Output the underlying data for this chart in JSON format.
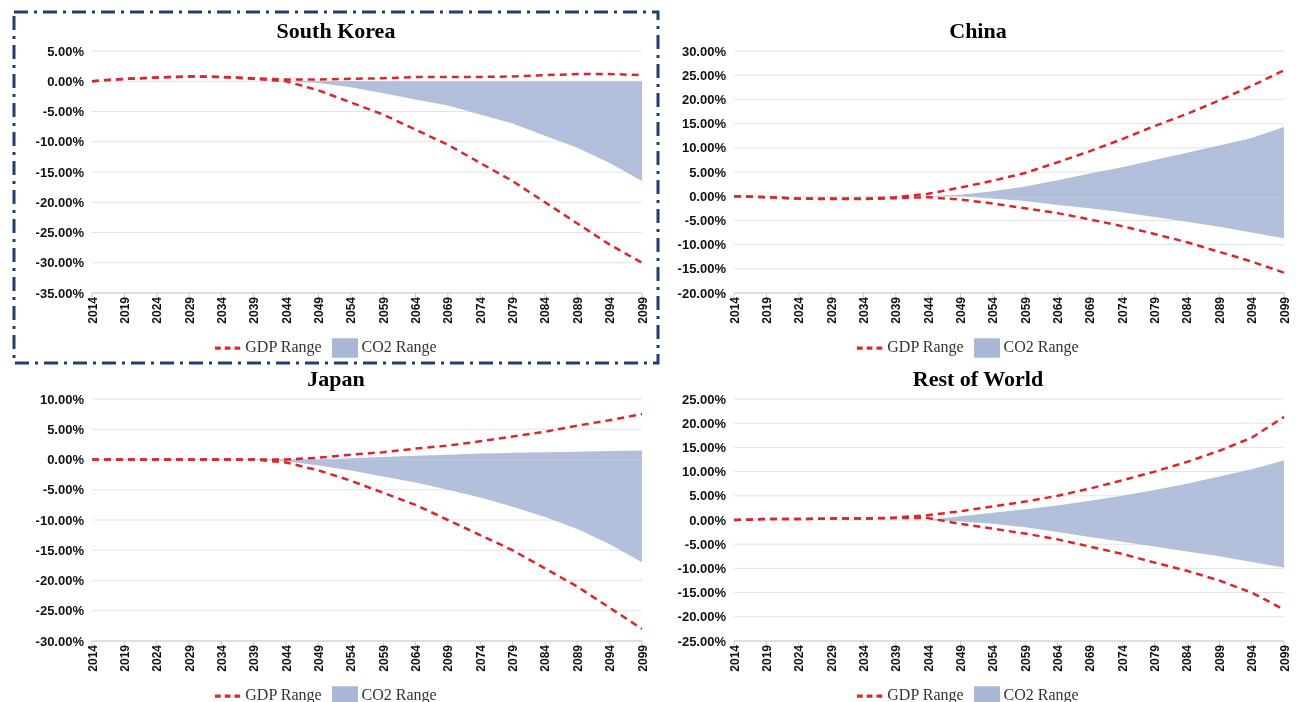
{
  "chart_data": [
    {
      "type": "area",
      "title": "South Korea",
      "categories": [
        "2014",
        "2019",
        "2024",
        "2029",
        "2034",
        "2039",
        "2044",
        "2049",
        "2054",
        "2059",
        "2064",
        "2069",
        "2074",
        "2079",
        "2084",
        "2089",
        "2094",
        "2099"
      ],
      "ylim": [
        -35,
        5
      ],
      "yticks": [
        {
          "value": 5,
          "label": "5.00%"
        },
        {
          "value": 0,
          "label": "0.00%"
        },
        {
          "value": -5,
          "label": "-5.00%"
        },
        {
          "value": -10,
          "label": "-10.00%"
        },
        {
          "value": -15,
          "label": "-15.00%"
        },
        {
          "value": -20,
          "label": "-20.00%"
        },
        {
          "value": -25,
          "label": "-25.00%"
        },
        {
          "value": -30,
          "label": "-30.00%"
        },
        {
          "value": -35,
          "label": "-35.00%"
        }
      ],
      "grid": "y",
      "legend": "bottom",
      "series": [
        {
          "name": "GDP Range",
          "type": "line",
          "line_style": "dashed",
          "color": "#e0242b",
          "values": [
            0,
            0.4,
            0.6,
            0.8,
            0.7,
            0.5,
            0.3,
            0.3,
            0.4,
            0.5,
            0.7,
            0.7,
            0.7,
            0.8,
            1,
            1.2,
            1.2,
            1
          ]
        },
        {
          "type": "line",
          "line_style": "dashed",
          "color": "#e0242b",
          "values": [
            0,
            0.4,
            0.6,
            0.8,
            0.7,
            0.4,
            0,
            -1.5,
            -3.5,
            -5.5,
            -8,
            -10.5,
            -13.5,
            -16.5,
            -20,
            -23.5,
            -27,
            -30
          ]
        },
        {
          "name": "CO2 Range",
          "color": "#a9b8d6",
          "values": [
            0,
            0,
            0,
            0,
            0,
            0,
            0,
            -0.3,
            -1,
            -2,
            -3,
            -4,
            -5.5,
            -7,
            -9,
            -11,
            -13.5,
            -16.5
          ]
        }
      ]
    },
    {
      "type": "area",
      "title": "China",
      "categories": [
        "2014",
        "2019",
        "2024",
        "2029",
        "2034",
        "2039",
        "2044",
        "2049",
        "2054",
        "2059",
        "2064",
        "2069",
        "2074",
        "2079",
        "2084",
        "2089",
        "2094",
        "2099"
      ],
      "ylim": [
        -20,
        30
      ],
      "yticks": [
        {
          "value": 30,
          "label": "30.00%"
        },
        {
          "value": 25,
          "label": "25.00%"
        },
        {
          "value": 20,
          "label": "20.00%"
        },
        {
          "value": 15,
          "label": "15.00%"
        },
        {
          "value": 10,
          "label": "10.00%"
        },
        {
          "value": 5,
          "label": "5.00%"
        },
        {
          "value": 0,
          "label": "0.00%"
        },
        {
          "value": -5,
          "label": "-5.00%"
        },
        {
          "value": -10,
          "label": "-10.00%"
        },
        {
          "value": -15,
          "label": "-15.00%"
        },
        {
          "value": -20,
          "label": "-20.00%"
        }
      ],
      "grid": "y",
      "legend": "bottom",
      "series": [
        {
          "name": "GDP Range",
          "type": "line",
          "line_style": "dashed",
          "color": "#e0242b",
          "values": [
            0,
            -0.2,
            -0.5,
            -0.5,
            -0.5,
            -0.2,
            0.5,
            1.8,
            3.2,
            4.8,
            7,
            9.3,
            11.8,
            14.5,
            17,
            19.8,
            22.8,
            26
          ]
        },
        {
          "type": "line",
          "line_style": "dashed",
          "color": "#e0242b",
          "values": [
            0,
            -0.2,
            -0.5,
            -0.6,
            -0.6,
            -0.4,
            -0.2,
            -0.7,
            -1.5,
            -2.5,
            -3.5,
            -4.8,
            -6.2,
            -7.8,
            -9.5,
            -11.5,
            -13.5,
            -15.8
          ]
        },
        {
          "name": "CO2 Range",
          "color": "#a9b8d6",
          "values": [
            0,
            0,
            0,
            0,
            0,
            0,
            0,
            0.3,
            1,
            2,
            3.3,
            4.7,
            6,
            7.5,
            9,
            10.5,
            12,
            14.3
          ]
        },
        {
          "color": "#aab9d7",
          "values": [
            0,
            0,
            0,
            0,
            0,
            0,
            0,
            0,
            -0.5,
            -1,
            -1.8,
            -2.5,
            -3.3,
            -4.3,
            -5.3,
            -6.3,
            -7.5,
            -8.7
          ]
        }
      ]
    },
    {
      "type": "area",
      "title": "Japan",
      "categories": [
        "2014",
        "2019",
        "2024",
        "2029",
        "2034",
        "2039",
        "2044",
        "2049",
        "2054",
        "2059",
        "2064",
        "2069",
        "2074",
        "2079",
        "2084",
        "2089",
        "2094",
        "2099"
      ],
      "ylim": [
        -30,
        10
      ],
      "yticks": [
        {
          "value": 10,
          "label": "10.00%"
        },
        {
          "value": 5,
          "label": "5.00%"
        },
        {
          "value": 0,
          "label": "0.00%"
        },
        {
          "value": -5,
          "label": "-5.00%"
        },
        {
          "value": -10,
          "label": "-10.00%"
        },
        {
          "value": -15,
          "label": "-15.00%"
        },
        {
          "value": -20,
          "label": "-20.00%"
        },
        {
          "value": -25,
          "label": "-25.00%"
        },
        {
          "value": -30,
          "label": "-30.00%"
        }
      ],
      "grid": "y",
      "legend": "bottom",
      "series": [
        {
          "name": "GDP Range",
          "type": "line",
          "line_style": "dashed",
          "color": "#e0242b",
          "values": [
            0,
            0,
            0,
            0,
            0,
            0,
            0,
            0.3,
            0.8,
            1.2,
            1.8,
            2.3,
            3,
            3.8,
            4.6,
            5.6,
            6.5,
            7.5
          ]
        },
        {
          "type": "line",
          "line_style": "dashed",
          "color": "#e0242b",
          "values": [
            0,
            0,
            0,
            0,
            0,
            0,
            -0.5,
            -1.8,
            -3.5,
            -5.5,
            -7.5,
            -10,
            -12.5,
            -15,
            -18,
            -21,
            -24.5,
            -28
          ]
        },
        {
          "name": "CO2 Range",
          "color": "#a9b8d6",
          "values": [
            0,
            0,
            0,
            0,
            0,
            0,
            0,
            0,
            0.2,
            0.4,
            0.6,
            0.8,
            1,
            1.1,
            1.2,
            1.3,
            1.4,
            1.5
          ]
        },
        {
          "color": "#aab9d7",
          "values": [
            0,
            0,
            0,
            0,
            0,
            0,
            -0.3,
            -1,
            -1.8,
            -2.8,
            -3.8,
            -5,
            -6.3,
            -7.8,
            -9.5,
            -11.5,
            -14,
            -17
          ]
        }
      ]
    },
    {
      "type": "area",
      "title": "Rest of World",
      "categories": [
        "2014",
        "2019",
        "2024",
        "2029",
        "2034",
        "2039",
        "2044",
        "2049",
        "2054",
        "2059",
        "2064",
        "2069",
        "2074",
        "2079",
        "2084",
        "2089",
        "2094",
        "2099"
      ],
      "ylim": [
        -25,
        25
      ],
      "yticks": [
        {
          "value": 25,
          "label": "25.00%"
        },
        {
          "value": 20,
          "label": "20.00%"
        },
        {
          "value": 15,
          "label": "15.00%"
        },
        {
          "value": 10,
          "label": "10.00%"
        },
        {
          "value": 5,
          "label": "5.00%"
        },
        {
          "value": 0,
          "label": "0.00%"
        },
        {
          "value": -5,
          "label": "-5.00%"
        },
        {
          "value": -10,
          "label": "-10.00%"
        },
        {
          "value": -15,
          "label": "-15.00%"
        },
        {
          "value": -20,
          "label": "-20.00%"
        },
        {
          "value": -25,
          "label": "-25.00%"
        }
      ],
      "grid": "y",
      "legend": "bottom",
      "series": [
        {
          "name": "GDP Range",
          "type": "line",
          "line_style": "dashed",
          "color": "#e0242b",
          "values": [
            0,
            0.2,
            0.2,
            0.3,
            0.3,
            0.5,
            1,
            1.8,
            2.8,
            3.8,
            5,
            6.5,
            8.2,
            10,
            12,
            14.3,
            17,
            21.3
          ]
        },
        {
          "type": "line",
          "line_style": "dashed",
          "color": "#e0242b",
          "values": [
            0,
            0.2,
            0.2,
            0.3,
            0.3,
            0.4,
            0.4,
            -0.8,
            -1.8,
            -2.8,
            -4,
            -5.5,
            -7,
            -8.8,
            -10.5,
            -12.5,
            -15,
            -18.5
          ]
        },
        {
          "name": "CO2 Range",
          "color": "#a9b8d6",
          "values": [
            0,
            0,
            0,
            0,
            0,
            0,
            0,
            0.8,
            1.5,
            2.2,
            3,
            4,
            5,
            6.2,
            7.5,
            9,
            10.5,
            12.3
          ]
        },
        {
          "color": "#aab9d7",
          "values": [
            0,
            0,
            0,
            0,
            0,
            0,
            0,
            -0.3,
            -0.8,
            -1.5,
            -2.5,
            -3.5,
            -4.5,
            -5.5,
            -6.5,
            -7.5,
            -8.7,
            -9.8
          ]
        }
      ]
    }
  ]
}
